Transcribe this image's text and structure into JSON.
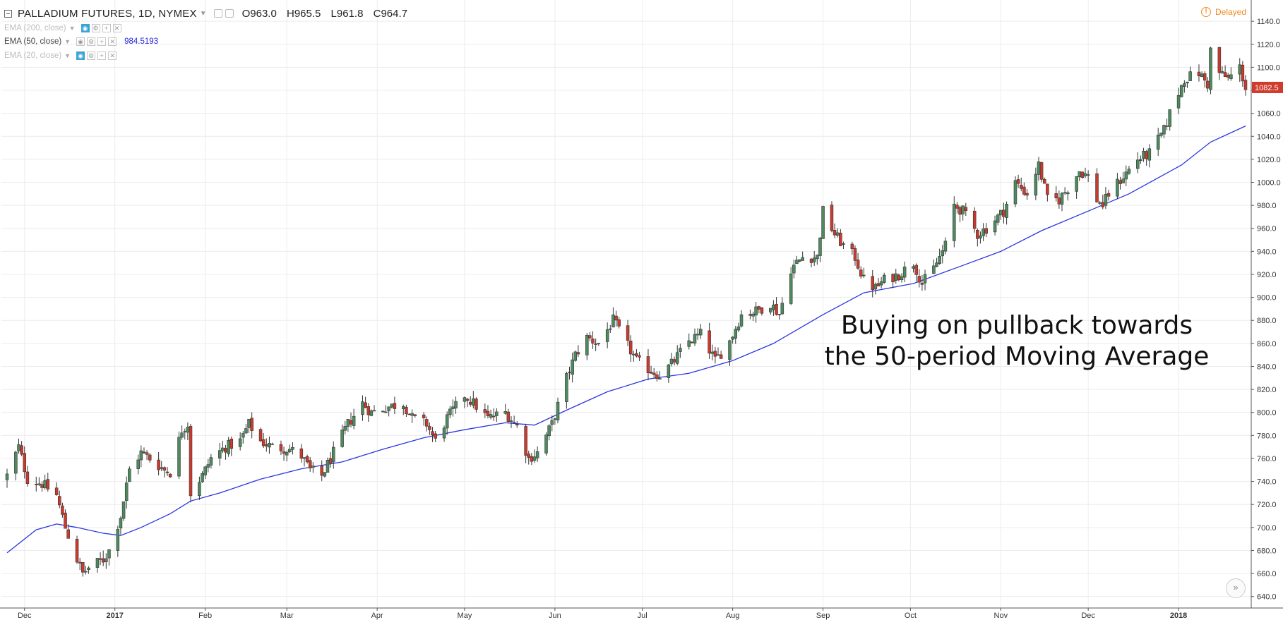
{
  "header": {
    "symbol": "PALLADIUM FUTURES, 1D, NYMEX",
    "open": "O963.0",
    "high": "H965.5",
    "low": "L961.8",
    "close": "C964.7"
  },
  "indicators": [
    {
      "label": "EMA (200, close)",
      "value": "",
      "active": false
    },
    {
      "label": "EMA (50, close)",
      "value": "984.5193",
      "active": true
    },
    {
      "label": "EMA (20, close)",
      "value": "",
      "active": false
    }
  ],
  "status": {
    "delayed": "Delayed"
  },
  "price_badge": "1082.5",
  "annotation": {
    "line1": "Buying on pullback towards",
    "line2": "the 50-period Moving Average"
  },
  "colors": {
    "up": "#4d8b5f",
    "down": "#cc3a2e",
    "ema": "#2a35e0",
    "grid": "#ececec",
    "badge": "#cf3b2c"
  },
  "chart_data": {
    "type": "candlestick",
    "instrument": "PALLADIUM FUTURES, 1D, NYMEX",
    "ylim": [
      630,
      1145
    ],
    "y_ticks": [
      640,
      660,
      680,
      700,
      720,
      740,
      760,
      780,
      800,
      820,
      840,
      860,
      880,
      900,
      920,
      940,
      960,
      980,
      1000,
      1020,
      1040,
      1060,
      1080,
      1100,
      1120,
      1140
    ],
    "x_tick_labels": [
      "Dec",
      "2017",
      "Feb",
      "Mar",
      "Apr",
      "May",
      "Jun",
      "Jul",
      "Aug",
      "Sep",
      "Oct",
      "Nov",
      "Dec",
      "2018"
    ],
    "x_range": [
      "2016-11-25",
      "2018-01-24"
    ],
    "close_anchors": [
      [
        "2016-11-25",
        745
      ],
      [
        "2016-11-29",
        770
      ],
      [
        "2016-12-02",
        742
      ],
      [
        "2016-12-07",
        738
      ],
      [
        "2016-12-12",
        728
      ],
      [
        "2016-12-15",
        700
      ],
      [
        "2016-12-19",
        672
      ],
      [
        "2016-12-21",
        660
      ],
      [
        "2016-12-23",
        665
      ],
      [
        "2016-12-28",
        672
      ],
      [
        "2016-12-30",
        680
      ],
      [
        "2017-01-03",
        710
      ],
      [
        "2017-01-06",
        750
      ],
      [
        "2017-01-10",
        765
      ],
      [
        "2017-01-13",
        760
      ],
      [
        "2017-01-18",
        750
      ],
      [
        "2017-01-20",
        748
      ],
      [
        "2017-01-24",
        785
      ],
      [
        "2017-01-26",
        790
      ],
      [
        "2017-01-27",
        730
      ],
      [
        "2017-01-31",
        745
      ],
      [
        "2017-02-03",
        760
      ],
      [
        "2017-02-08",
        770
      ],
      [
        "2017-02-13",
        775
      ],
      [
        "2017-02-16",
        790
      ],
      [
        "2017-02-20",
        775
      ],
      [
        "2017-02-24",
        770
      ],
      [
        "2017-03-02",
        768
      ],
      [
        "2017-03-06",
        762
      ],
      [
        "2017-03-09",
        750
      ],
      [
        "2017-03-13",
        745
      ],
      [
        "2017-03-17",
        765
      ],
      [
        "2017-03-22",
        790
      ],
      [
        "2017-03-27",
        808
      ],
      [
        "2017-03-30",
        800
      ],
      [
        "2017-04-05",
        805
      ],
      [
        "2017-04-10",
        808
      ],
      [
        "2017-04-13",
        795
      ],
      [
        "2017-04-18",
        790
      ],
      [
        "2017-04-21",
        775
      ],
      [
        "2017-04-25",
        795
      ],
      [
        "2017-05-01",
        815
      ],
      [
        "2017-05-04",
        808
      ],
      [
        "2017-05-09",
        795
      ],
      [
        "2017-05-15",
        800
      ],
      [
        "2017-05-19",
        788
      ],
      [
        "2017-05-23",
        760
      ],
      [
        "2017-05-26",
        765
      ],
      [
        "2017-05-31",
        790
      ],
      [
        "2017-06-05",
        830
      ],
      [
        "2017-06-08",
        850
      ],
      [
        "2017-06-12",
        865
      ],
      [
        "2017-06-16",
        860
      ],
      [
        "2017-06-21",
        880
      ],
      [
        "2017-06-26",
        858
      ],
      [
        "2017-06-29",
        845
      ],
      [
        "2017-07-03",
        838
      ],
      [
        "2017-07-07",
        832
      ],
      [
        "2017-07-11",
        842
      ],
      [
        "2017-07-17",
        862
      ],
      [
        "2017-07-21",
        868
      ],
      [
        "2017-07-26",
        845
      ],
      [
        "2017-07-31",
        862
      ],
      [
        "2017-08-04",
        885
      ],
      [
        "2017-08-09",
        888
      ],
      [
        "2017-08-14",
        895
      ],
      [
        "2017-08-17",
        885
      ],
      [
        "2017-08-21",
        925
      ],
      [
        "2017-08-25",
        935
      ],
      [
        "2017-08-30",
        935
      ],
      [
        "2017-09-01",
        975
      ],
      [
        "2017-09-05",
        955
      ],
      [
        "2017-09-08",
        945
      ],
      [
        "2017-09-12",
        935
      ],
      [
        "2017-09-15",
        915
      ],
      [
        "2017-09-19",
        908
      ],
      [
        "2017-09-22",
        915
      ],
      [
        "2017-09-27",
        920
      ],
      [
        "2017-10-02",
        930
      ],
      [
        "2017-10-05",
        912
      ],
      [
        "2017-10-09",
        925
      ],
      [
        "2017-10-13",
        945
      ],
      [
        "2017-10-16",
        980
      ],
      [
        "2017-10-19",
        975
      ],
      [
        "2017-10-24",
        955
      ],
      [
        "2017-10-27",
        960
      ],
      [
        "2017-11-02",
        975
      ],
      [
        "2017-11-06",
        1000
      ],
      [
        "2017-11-10",
        990
      ],
      [
        "2017-11-14",
        1015
      ],
      [
        "2017-11-17",
        985
      ],
      [
        "2017-11-21",
        985
      ],
      [
        "2017-11-24",
        995
      ],
      [
        "2017-11-28",
        1010
      ],
      [
        "2017-12-01",
        1005
      ],
      [
        "2017-12-04",
        985
      ],
      [
        "2017-12-06",
        980
      ],
      [
        "2017-12-08",
        990
      ],
      [
        "2017-12-13",
        1005
      ],
      [
        "2017-12-18",
        1020
      ],
      [
        "2017-12-22",
        1025
      ],
      [
        "2017-12-27",
        1045
      ],
      [
        "2017-12-29",
        1060
      ],
      [
        "2018-01-03",
        1090
      ],
      [
        "2018-01-08",
        1095
      ],
      [
        "2018-01-11",
        1085
      ],
      [
        "2018-01-12",
        1115
      ],
      [
        "2018-01-15",
        1095
      ],
      [
        "2018-01-18",
        1090
      ],
      [
        "2018-01-22",
        1100
      ],
      [
        "2018-01-24",
        1082.5
      ]
    ],
    "ema50": {
      "name": "EMA (50, close)",
      "points": [
        [
          "2016-11-25",
          678
        ],
        [
          "2016-12-05",
          698
        ],
        [
          "2016-12-12",
          703
        ],
        [
          "2016-12-19",
          700
        ],
        [
          "2016-12-28",
          695
        ],
        [
          "2017-01-03",
          693
        ],
        [
          "2017-01-10",
          700
        ],
        [
          "2017-01-20",
          712
        ],
        [
          "2017-01-27",
          723
        ],
        [
          "2017-02-06",
          730
        ],
        [
          "2017-02-20",
          742
        ],
        [
          "2017-03-06",
          751
        ],
        [
          "2017-03-20",
          757
        ],
        [
          "2017-04-03",
          768
        ],
        [
          "2017-04-17",
          778
        ],
        [
          "2017-05-01",
          785
        ],
        [
          "2017-05-15",
          791
        ],
        [
          "2017-05-25",
          789
        ],
        [
          "2017-06-05",
          802
        ],
        [
          "2017-06-19",
          818
        ],
        [
          "2017-07-03",
          829
        ],
        [
          "2017-07-17",
          834
        ],
        [
          "2017-08-01",
          845
        ],
        [
          "2017-08-15",
          860
        ],
        [
          "2017-09-01",
          885
        ],
        [
          "2017-09-15",
          904
        ],
        [
          "2017-10-02",
          912
        ],
        [
          "2017-10-16",
          925
        ],
        [
          "2017-11-01",
          940
        ],
        [
          "2017-11-15",
          958
        ],
        [
          "2017-12-01",
          975
        ],
        [
          "2017-12-15",
          990
        ],
        [
          "2018-01-02",
          1015
        ],
        [
          "2018-01-12",
          1035
        ],
        [
          "2018-01-24",
          1049
        ]
      ]
    }
  }
}
